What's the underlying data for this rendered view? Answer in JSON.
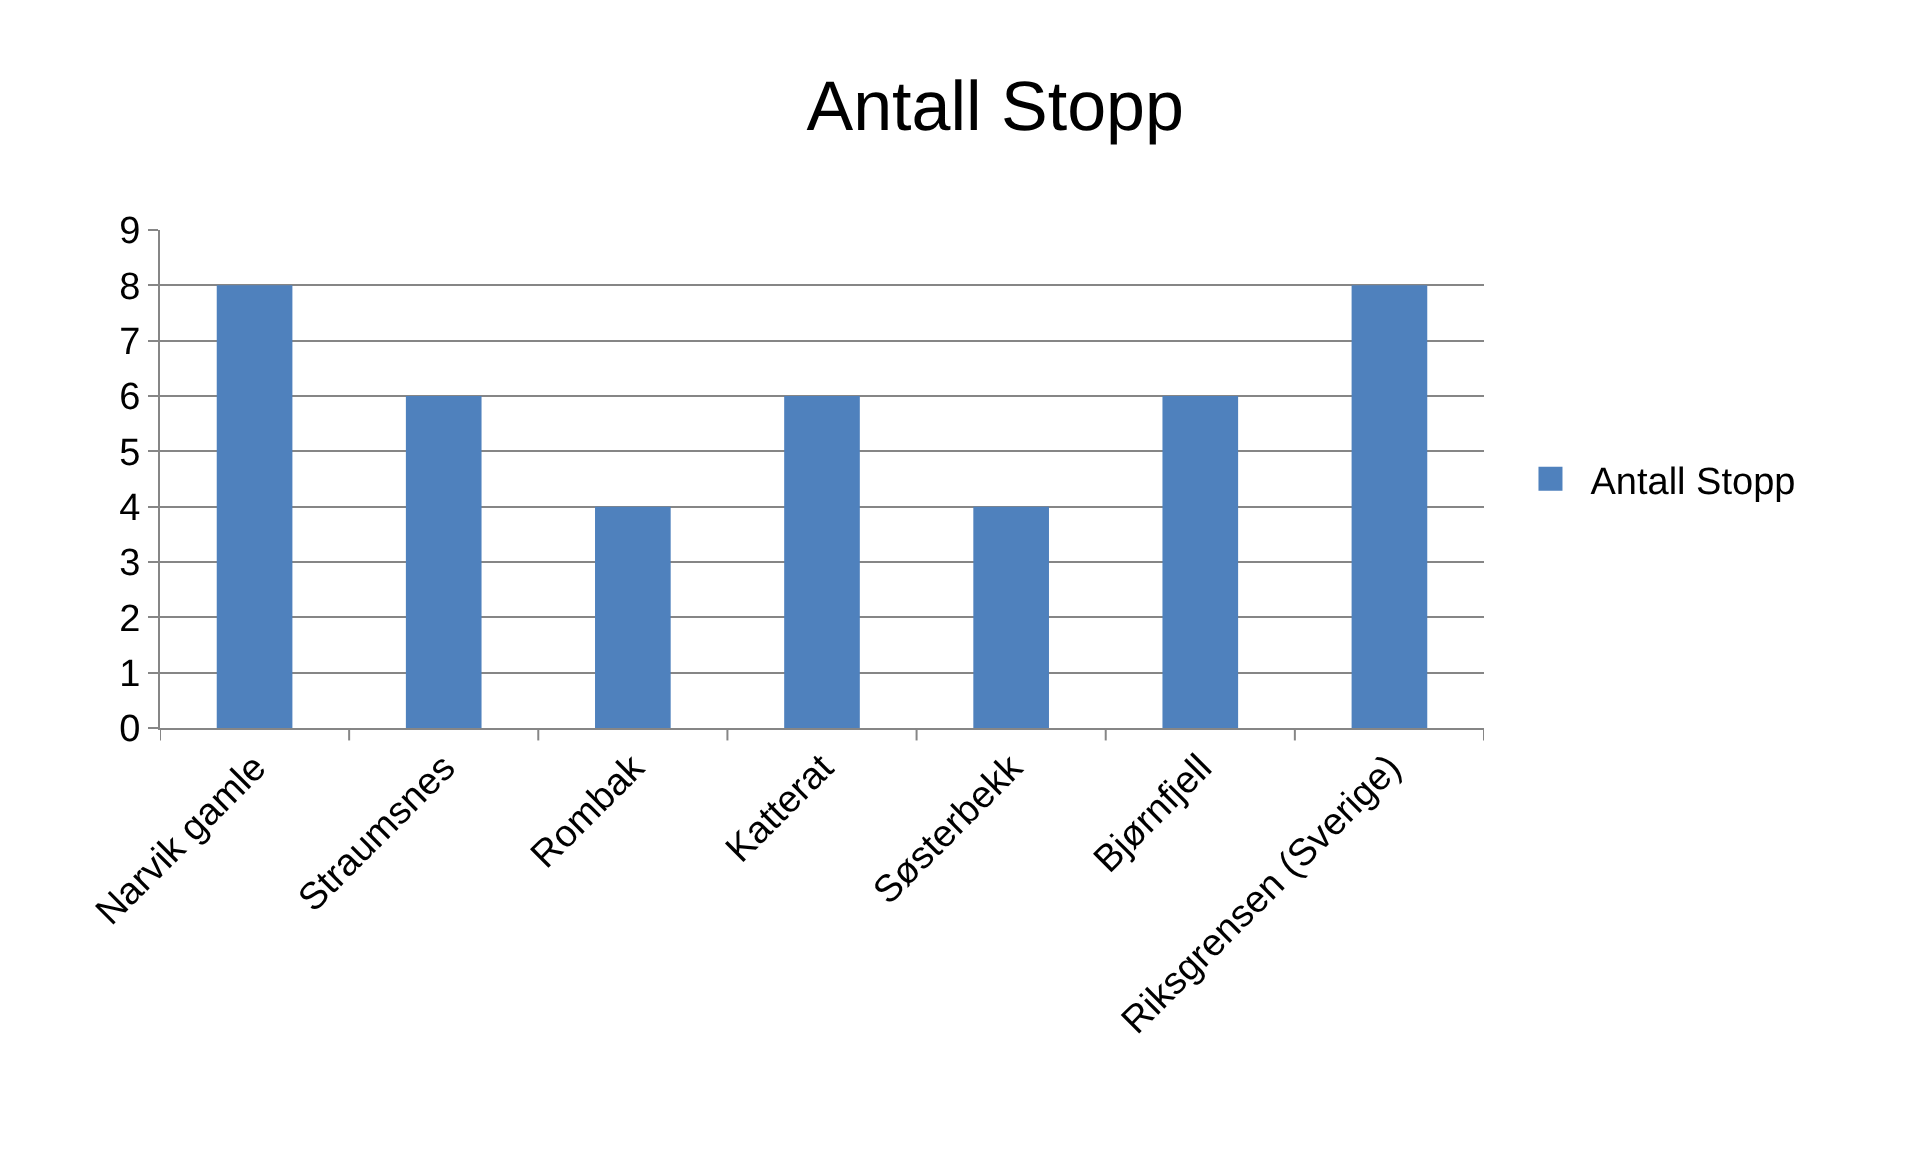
{
  "chart_data": {
    "type": "bar",
    "title": "Antall Stopp",
    "categories": [
      "Narvik gamle",
      "Straumsnes",
      "Rombak",
      "Katterat",
      "Søsterbekk",
      "Bjørnfjell",
      "Riksgrensen (Sverige)"
    ],
    "series": [
      {
        "name": "Antall Stopp",
        "color": "#4f81bd",
        "values": [
          8,
          6,
          4,
          6,
          4,
          6,
          8
        ]
      }
    ],
    "ylim": [
      0,
      9
    ],
    "yticks": [
      0,
      1,
      2,
      3,
      4,
      5,
      6,
      7,
      8,
      9
    ],
    "grid": "y",
    "legend": "right"
  }
}
